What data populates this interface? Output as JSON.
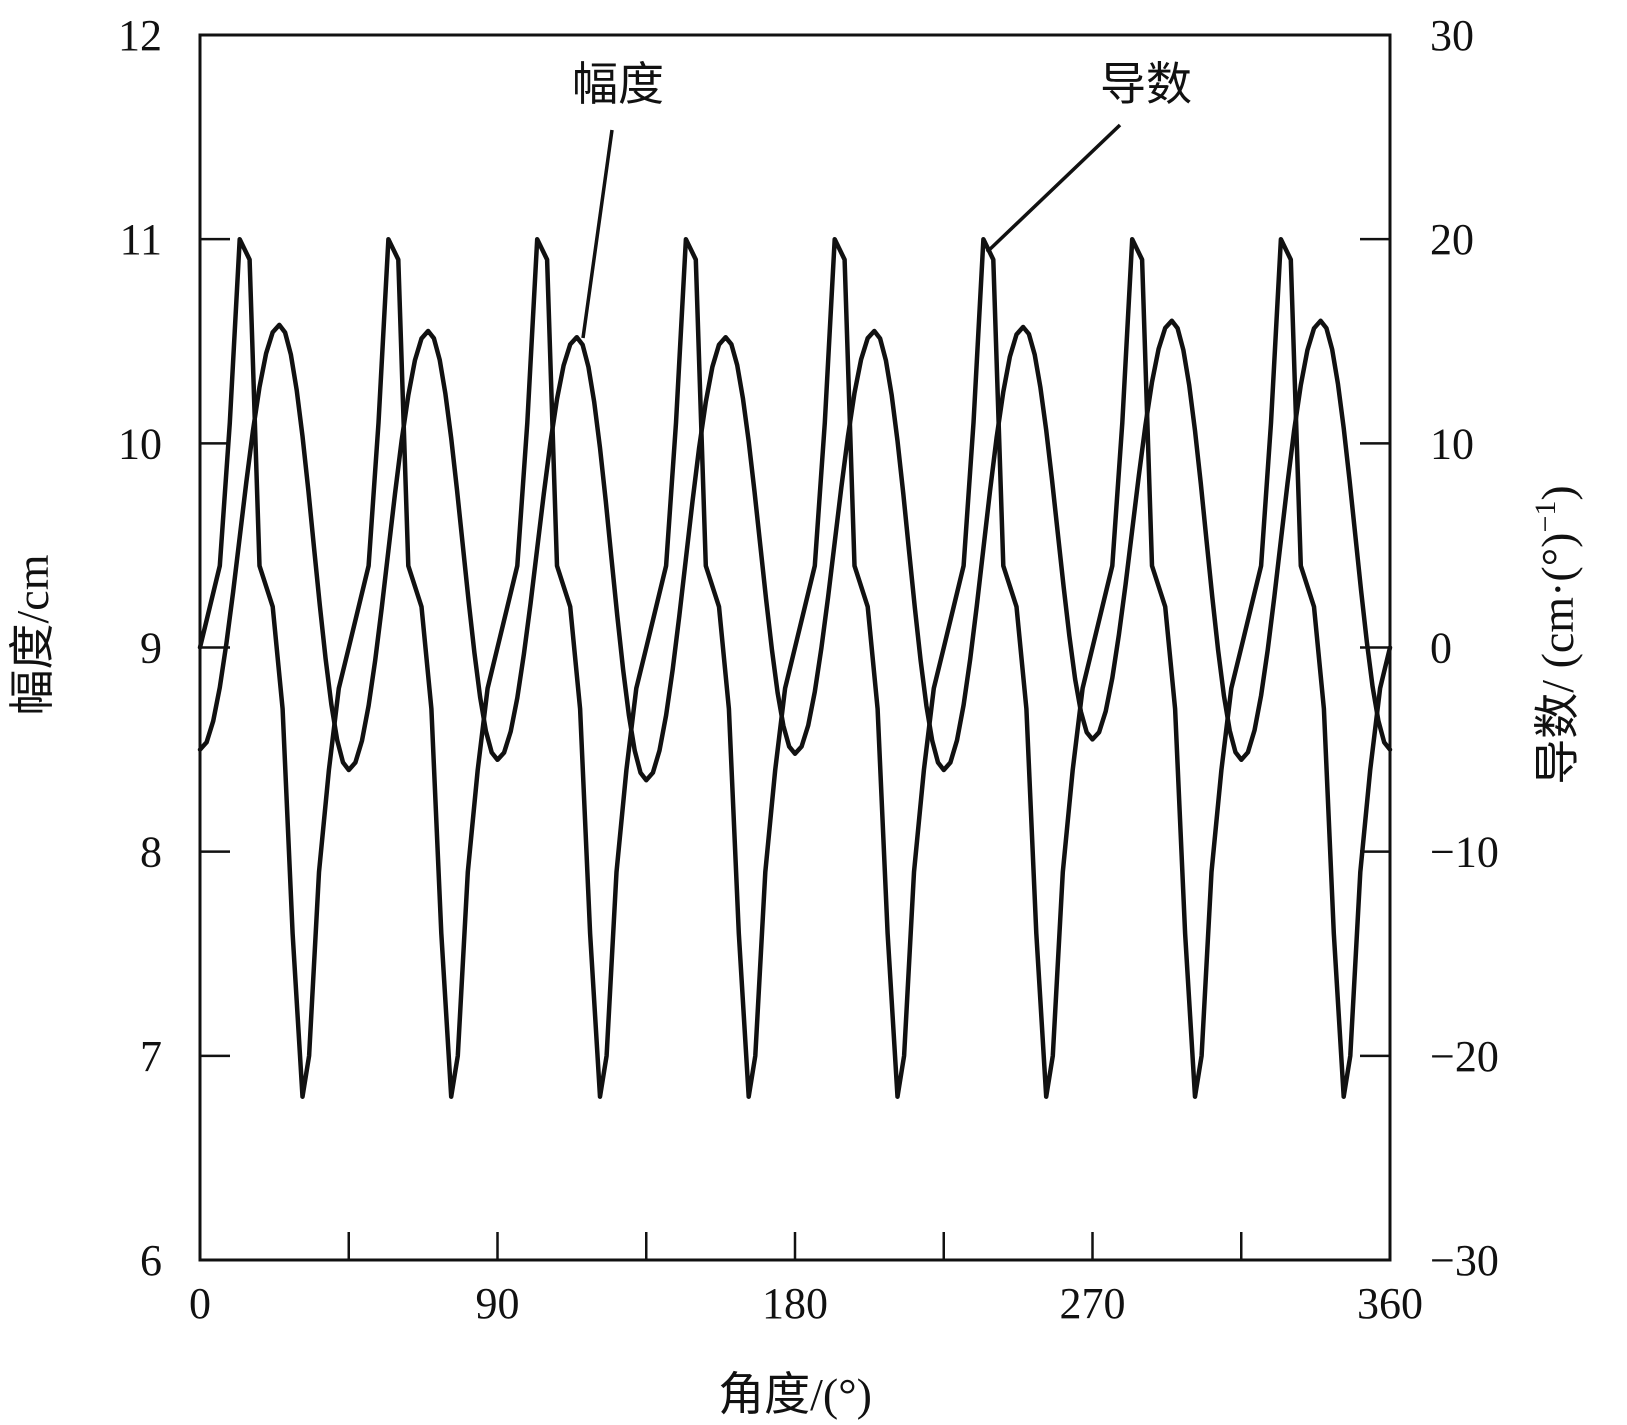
{
  "chart_data": {
    "type": "line",
    "title": "",
    "xlabel": "角度/(°)",
    "ylabel_left": "幅度/cm",
    "ylabel_right": "导数/ (cm·(°)",
    "ylabel_right_sup": "−1",
    "ylabel_right_close": ")",
    "xlim": [
      0,
      360
    ],
    "ylim_left": [
      6,
      12
    ],
    "ylim_right": [
      -30,
      30
    ],
    "x_ticks": [
      0,
      45,
      90,
      135,
      180,
      225,
      270,
      315,
      360
    ],
    "x_tick_labels": [
      "0",
      "",
      "90",
      "",
      "180",
      "",
      "270",
      "",
      "360"
    ],
    "y_left_ticks": [
      6,
      7,
      8,
      9,
      10,
      11,
      12
    ],
    "y_left_tick_labels": [
      "6",
      "7",
      "8",
      "9",
      "10",
      "11",
      "12"
    ],
    "y_right_ticks": [
      -30,
      -20,
      -10,
      0,
      10,
      20,
      30
    ],
    "y_right_tick_labels": [
      "−30",
      "−20",
      "−10",
      "0",
      "10",
      "20",
      "30"
    ],
    "grid": false,
    "series": [
      {
        "name": "幅度",
        "axis": "left",
        "x": [
          0,
          24,
          45,
          69,
          90,
          114,
          135,
          159,
          180,
          204,
          225,
          249,
          270,
          294,
          315,
          339,
          360
        ],
        "y": [
          8.5,
          10.58,
          8.4,
          10.55,
          8.45,
          10.52,
          8.35,
          10.52,
          8.48,
          10.55,
          8.4,
          10.57,
          8.55,
          10.6,
          8.45,
          10.6,
          8.5
        ]
      },
      {
        "name": "导数",
        "axis": "right",
        "x": [
          0,
          3,
          6,
          9,
          12,
          15,
          18,
          22,
          25,
          28,
          31,
          33,
          36,
          39,
          42,
          45
        ],
        "y": [
          0,
          2,
          4,
          11,
          20,
          19,
          4,
          2,
          -3,
          -14,
          -22,
          -20,
          -11,
          -6,
          -2,
          0
        ],
        "period": 45
      }
    ],
    "annotations": [
      {
        "text": "幅度",
        "target": "幅度"
      },
      {
        "text": "导数",
        "target": "导数"
      }
    ]
  }
}
